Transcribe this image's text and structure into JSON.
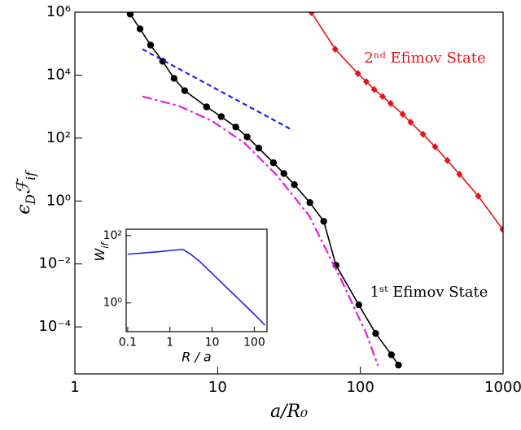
{
  "chart_data": [
    {
      "type": "line",
      "log_x": true,
      "log_y": true,
      "xlabel": "a/R₀",
      "ylabel": [
        "ϵ",
        "D",
        "ℱ",
        "if"
      ],
      "xlim": [
        1,
        1000
      ],
      "ylim": [
        3.2e-06,
        1000000
      ],
      "xticks": [
        1,
        10,
        100,
        1000
      ],
      "yticks": [
        {
          "value": 0.0001,
          "label": "10⁻⁴"
        },
        {
          "value": 0.01,
          "label": "10⁻²"
        },
        {
          "value": 1,
          "label": "10⁰"
        },
        {
          "value": 100,
          "label": "10²"
        },
        {
          "value": 10000,
          "label": "10⁴"
        },
        {
          "value": 1000000,
          "label": "10⁶"
        }
      ],
      "annotations": [
        {
          "text": "2ⁿᵈ Efimov State",
          "color": "#e8141b"
        },
        {
          "text": "1ˢᵗ Efimov State",
          "color": "#000000"
        }
      ],
      "series": [
        {
          "color": "#000000",
          "marker": "circle",
          "dash": "solid",
          "x": [
            2.44,
            2.86,
            3.39,
            4.12,
            4.95,
            5.88,
            8.37,
            10.6,
            13.4,
            16.1,
            19.4,
            24.6,
            29.1,
            34.5,
            44.3,
            55.4,
            67.5,
            97.5,
            128,
            165,
            185
          ],
          "values": [
            870000,
            295000,
            90000,
            27500,
            7900,
            3200,
            980,
            480,
            224,
            109,
            48,
            16.4,
            7.5,
            3.3,
            0.89,
            0.226,
            0.0091,
            0.0005,
            6.2e-05,
            1.3e-05,
            6.1e-06
          ]
        },
        {
          "color": "#e8141b",
          "marker": "diamond",
          "dash": "solid",
          "x": [
            45.5,
            66.6,
            96.2,
            110,
            125,
            143,
            163,
            198,
            225,
            275,
            334,
            407,
            495,
            670,
            993
          ],
          "values": [
            970000,
            67000,
            11200,
            6200,
            3500,
            2100,
            1260,
            575,
            318,
            131,
            53,
            19.5,
            7.1,
            1.43,
            0.126
          ]
        },
        {
          "color": "#1f1fe8",
          "marker": "none",
          "dash": "dashed",
          "x": [
            2.97,
            33.7
          ],
          "values": [
            67000,
            176
          ]
        },
        {
          "color": "#e619e6",
          "marker": "none",
          "dash": "dashdot",
          "x": [
            2.97,
            5.36,
            9.06,
            15.3,
            25.9,
            43.8,
            74,
            110,
            133
          ],
          "values": [
            2100,
            1050,
            357,
            72,
            6.7,
            0.34,
            0.0029,
            6.2e-05,
            5.8e-06
          ]
        }
      ]
    },
    {
      "type": "line",
      "log_x": true,
      "log_y": true,
      "xlabel": "R / a",
      "ylabel": [
        "W",
        "if"
      ],
      "xlim": [
        0.092,
        200
      ],
      "ylim": [
        0.14,
        155
      ],
      "xticks": [
        0.1,
        1,
        10,
        100
      ],
      "yticks": [
        {
          "value": 1,
          "label": "10⁰"
        },
        {
          "value": 100,
          "label": "10²"
        }
      ],
      "series": [
        {
          "color": "#1f1fe8",
          "marker": "none",
          "dash": "solid",
          "x": [
            0.1,
            0.5,
            1,
            2,
            3,
            5.1,
            10,
            100,
            178
          ],
          "values": [
            28,
            33,
            36,
            39,
            29,
            17,
            7.5,
            0.46,
            0.22
          ]
        }
      ]
    }
  ]
}
